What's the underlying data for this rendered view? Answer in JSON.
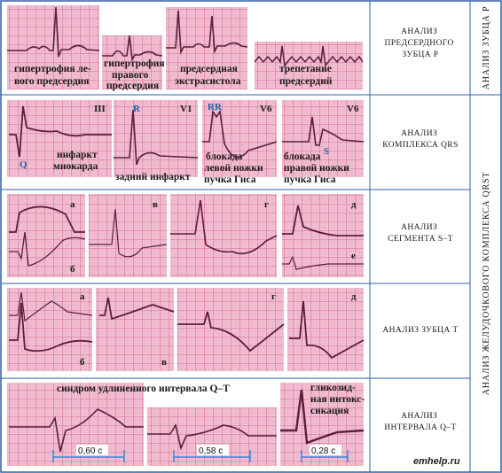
{
  "row_titles": [
    [
      "АНАЛИЗ",
      "ПРЕДСЕРДНОГО",
      "ЗУБЦА Р"
    ],
    [
      "АНАЛИЗ",
      "КОМПЛЕКСА QRS"
    ],
    [
      "АНАЛИЗ",
      "СЕГМЕНТА S–T"
    ],
    [
      "АНАЛИЗ ЗУБЦА Т"
    ],
    [
      "АНАЛИЗ",
      "ИНТЕРВАЛА Q–T"
    ]
  ],
  "side_titles": {
    "p_wave": "АНАЛИЗ ЗУБЦА Р",
    "ventricular": "АНАЛИЗ ЖЕЛУДОЧКОВОГО КОМПЛЕКСА QRST"
  },
  "row1": {
    "captions": [
      [
        "гипертрофия ле-",
        "вого предсердия"
      ],
      [
        "гипертрофия",
        "правого",
        "предсердия"
      ],
      [
        "предсердная",
        "экстрасистола"
      ],
      [
        "трепетание",
        "предсердий"
      ]
    ]
  },
  "row2": {
    "leads": [
      "III",
      "V1",
      "V6",
      "V6"
    ],
    "wave_labels": [
      "Q",
      "R",
      "RR",
      "S"
    ],
    "captions": [
      [
        "инфаркт",
        "миокарда"
      ],
      [
        "задний инфаркт"
      ],
      [
        "блокада",
        "левой ножки",
        "пучка Гиса"
      ],
      [
        "блокада",
        "правой ножки",
        "пучка Гиса"
      ]
    ]
  },
  "row3": {
    "letters": [
      "а",
      "б",
      "в",
      "г",
      "д",
      "е"
    ]
  },
  "row4": {
    "letters": [
      "а",
      "б",
      "в",
      "г",
      "д"
    ]
  },
  "row5": {
    "captions": [
      [
        "синдром удлиненного интервала Q–T"
      ],
      [
        "гликозид-",
        "ная интокс-",
        "сикация"
      ]
    ],
    "intervals": [
      "0,60 с",
      "0,58 с",
      "0,28 с"
    ]
  },
  "watermark": "emhelp.ru",
  "colors": {
    "grid_bg": "#f4c8d8",
    "grid_minor": "#e79bb7",
    "grid_major": "#c8487a",
    "trace": "#5b1e3b",
    "border": "#2f5fa0",
    "interval_marker": "#2b8bd8"
  }
}
